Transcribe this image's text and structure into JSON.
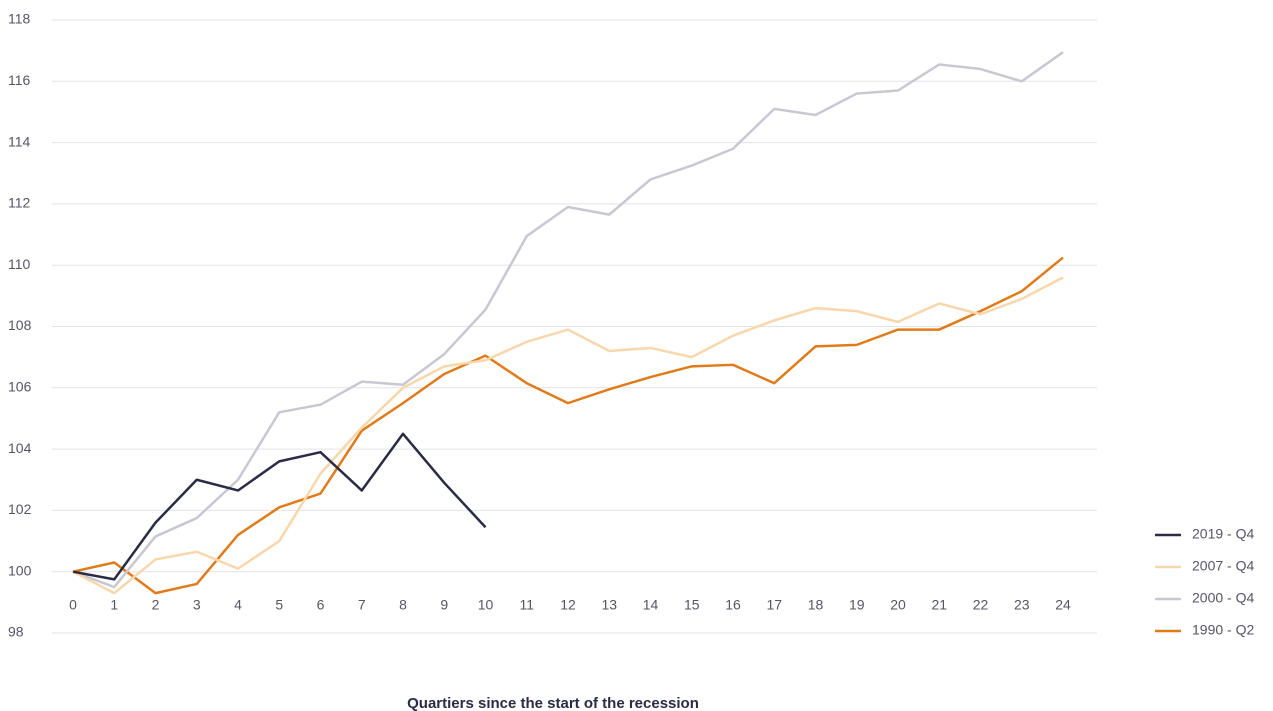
{
  "chart_data": {
    "type": "line",
    "x_label": "Quartiers since the start of the recession",
    "x": [
      0,
      1,
      2,
      3,
      4,
      5,
      6,
      7,
      8,
      9,
      10,
      11,
      12,
      13,
      14,
      15,
      16,
      17,
      18,
      19,
      20,
      21,
      22,
      23,
      24
    ],
    "xlim": [
      0,
      24
    ],
    "xticks": [
      0,
      1,
      2,
      3,
      4,
      5,
      6,
      7,
      8,
      9,
      10,
      11,
      12,
      13,
      14,
      15,
      16,
      17,
      18,
      19,
      20,
      21,
      22,
      23,
      24
    ],
    "ylim": [
      98,
      118
    ],
    "yticks": [
      98,
      100,
      102,
      104,
      106,
      108,
      110,
      112,
      114,
      116,
      118
    ],
    "grid": true,
    "legend": "right",
    "series": [
      {
        "name": "2019 - Q4",
        "color": "#2b2b45",
        "values": [
          100,
          99.75,
          101.6,
          103.0,
          102.65,
          103.6,
          103.9,
          102.65,
          104.5,
          102.9,
          101.45,
          null,
          null,
          null,
          null,
          null,
          null,
          null,
          null,
          null,
          null,
          null,
          null,
          null,
          null
        ]
      },
      {
        "name": "2007 - Q4",
        "color": "#f7d7ab",
        "values": [
          100,
          99.3,
          100.4,
          100.65,
          100.1,
          101.0,
          103.2,
          104.7,
          106.0,
          106.7,
          106.9,
          107.5,
          107.9,
          107.2,
          107.3,
          107.0,
          107.7,
          108.2,
          108.6,
          108.5,
          108.15,
          108.75,
          108.4,
          108.9,
          109.6
        ]
      },
      {
        "name": "2000 - Q4",
        "color": "#c8c8d3",
        "values": [
          100,
          99.5,
          101.15,
          101.75,
          103.0,
          105.2,
          105.45,
          106.2,
          106.1,
          107.1,
          108.55,
          110.95,
          111.9,
          111.65,
          112.8,
          113.25,
          113.8,
          115.1,
          114.9,
          115.6,
          115.7,
          116.55,
          116.4,
          116.0,
          116.95
        ]
      },
      {
        "name": "1990 - Q2",
        "color": "#e07b1a",
        "values": [
          100,
          100.3,
          99.3,
          99.6,
          101.2,
          102.1,
          102.55,
          104.6,
          105.5,
          106.45,
          107.05,
          106.15,
          105.5,
          105.95,
          106.35,
          106.7,
          106.75,
          106.15,
          107.35,
          107.4,
          107.9,
          107.9,
          108.5,
          109.15,
          110.25
        ]
      }
    ]
  }
}
